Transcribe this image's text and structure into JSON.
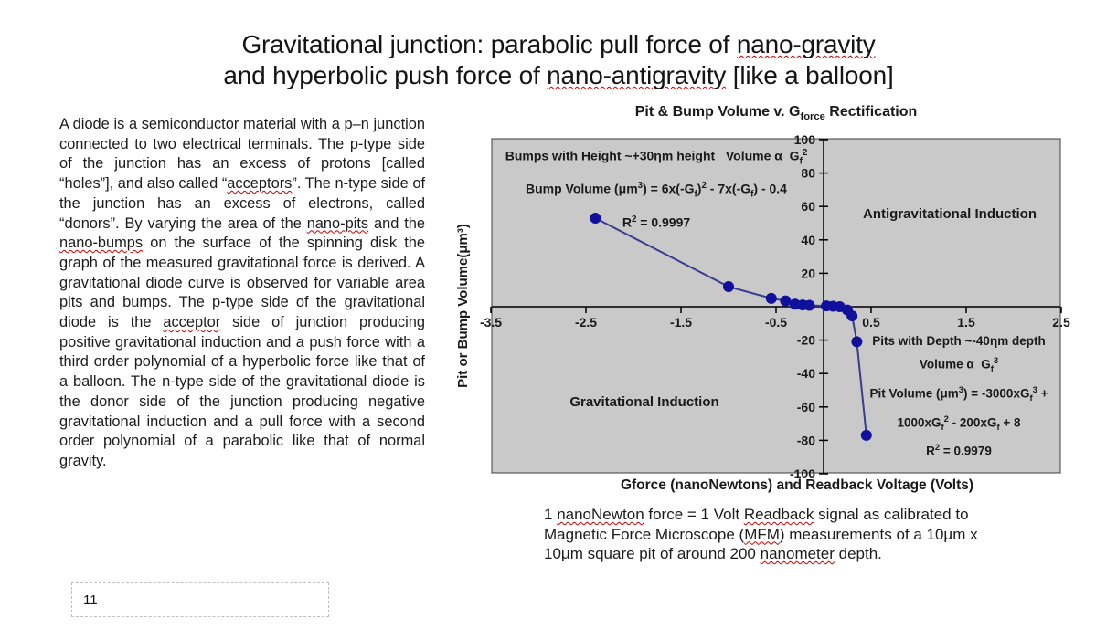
{
  "slide": {
    "title_lines": [
      {
        "segments": [
          {
            "t": "Gravitational junction: parabolic pull force of "
          },
          {
            "t": "nano-gravity",
            "spell": true
          }
        ]
      },
      {
        "segments": [
          {
            "t": "and hyperbolic push force of "
          },
          {
            "t": "nano-antigravity",
            "spell": true
          },
          {
            "t": " [like a balloon]"
          }
        ]
      }
    ],
    "page_number": "11"
  },
  "body_text": {
    "segments": [
      {
        "t": "A diode is a semiconductor material with a p–n junction connected to two electrical terminals. The p-type side of the junction has an excess of protons [called “holes”], and also called “"
      },
      {
        "t": "acceptors",
        "spell": true
      },
      {
        "t": "”. The n-type side of the junction has an excess of electrons, called “donors”. By varying the area of the "
      },
      {
        "t": "nano-pits",
        "spell": true
      },
      {
        "t": " and the "
      },
      {
        "t": "nano-bumps",
        "spell": true
      },
      {
        "t": " on the surface of the spinning disk the graph of the measured gravitational force is derived. A gravitational diode curve is observed for variable area pits and bumps. The p-type side of the gravitational diode is the "
      },
      {
        "t": "acceptor",
        "spell": true
      },
      {
        "t": " side of junction producing positive gravitational induction and a push force with a third order polynomial of a hyperbolic force like that of a balloon. The n-type side of the gravitational diode is the donor side of the junction producing negative gravitational induction and a pull force with a second order polynomial of a parabolic like that of normal gravity."
      }
    ]
  },
  "caption": {
    "segments": [
      {
        "t": "1 "
      },
      {
        "t": "nanoNewton",
        "spell": true
      },
      {
        "t": " force = 1 Volt "
      },
      {
        "t": "Readback",
        "spell": true
      },
      {
        "t": " signal as calibrated to Magnetic Force Microscope ("
      },
      {
        "t": "MFM",
        "spell": true
      },
      {
        "t": ") measurements of a 10μm x 10μm square pit of around 200 "
      },
      {
        "t": "nanometer",
        "spell": true
      },
      {
        "t": " depth."
      }
    ]
  },
  "chart_data": {
    "type": "line",
    "title_segments": [
      {
        "t": "Pit & Bump Volume v. G"
      },
      {
        "t": "force",
        "sub": true
      },
      {
        "t": " Rectification"
      }
    ],
    "plot_bg": "#c9c9c9",
    "grid": false,
    "legend": false,
    "x_axis": {
      "title": "Gforce (nanoNewtons) and Readback Voltage (Volts)",
      "min": -3.5,
      "max": 2.5,
      "tick_step": 1.0,
      "tick_labels": [
        -3.5,
        -2.5,
        -1.5,
        -0.5,
        0.5,
        1.5,
        2.5
      ]
    },
    "y_axis": {
      "title": "Pit or Bump Volume(μm³)",
      "min": -100,
      "max": 100,
      "tick_step": 20,
      "tick_labels": [
        100,
        80,
        60,
        40,
        20,
        -20,
        -40,
        -60,
        -80,
        -100
      ]
    },
    "series": [
      {
        "name": "Pit & Bump Volume",
        "line_color": "#3b3b8e",
        "marker_color": "#10109b",
        "points": [
          [
            -2.4,
            53
          ],
          [
            -1.0,
            12
          ],
          [
            -0.55,
            5
          ],
          [
            -0.4,
            3.5
          ],
          [
            -0.3,
            1.5
          ],
          [
            -0.22,
            1
          ],
          [
            -0.15,
            0.8
          ],
          [
            0.03,
            0.5
          ],
          [
            0.1,
            0.3
          ],
          [
            0.17,
            0
          ],
          [
            0.25,
            -2
          ],
          [
            0.3,
            -5.5
          ],
          [
            0.35,
            -21
          ],
          [
            0.45,
            -77
          ]
        ]
      }
    ],
    "annotations": {
      "bumps": {
        "lines": [
          [
            {
              "t": "Bumps with Height ~+30ηm height   Volume α  G"
            },
            {
              "t": "f",
              "sub": true
            },
            {
              "t": "2",
              "sup": true
            }
          ],
          [
            {
              "t": "Bump Volume (μm"
            },
            {
              "t": "3",
              "sup": true
            },
            {
              "t": ") = 6x(-G"
            },
            {
              "t": "f",
              "sub": true
            },
            {
              "t": ")"
            },
            {
              "t": "2",
              "sup": true
            },
            {
              "t": " - 7x(-G"
            },
            {
              "t": "f",
              "sub": true
            },
            {
              "t": ") - 0.4"
            }
          ],
          [
            {
              "t": "R"
            },
            {
              "t": "2",
              "sup": true
            },
            {
              "t": " = 0.9997"
            }
          ]
        ]
      },
      "pits": {
        "lines": [
          [
            {
              "t": "Pits with Depth ~-40ηm depth"
            }
          ],
          [
            {
              "t": "Volume α  G"
            },
            {
              "t": "f",
              "sub": true
            },
            {
              "t": "3",
              "sup": true
            }
          ],
          [
            {
              "t": "Pit Volume (μm"
            },
            {
              "t": "3",
              "sup": true
            },
            {
              "t": ") = -3000xG"
            },
            {
              "t": "f",
              "sub": true
            },
            {
              "t": "3",
              "sup": true
            },
            {
              "t": " +"
            }
          ],
          [
            {
              "t": "1000xG"
            },
            {
              "t": "f",
              "sub": true
            },
            {
              "t": "2",
              "sup": true
            },
            {
              "t": " - 200xG"
            },
            {
              "t": "f",
              "sub": true
            },
            {
              "t": " + 8"
            }
          ],
          [
            {
              "t": "R"
            },
            {
              "t": "2",
              "sup": true
            },
            {
              "t": " = 0.9979"
            }
          ]
        ]
      },
      "region_positive": "Antigravitational Induction",
      "region_negative": "Gravitational Induction"
    }
  }
}
